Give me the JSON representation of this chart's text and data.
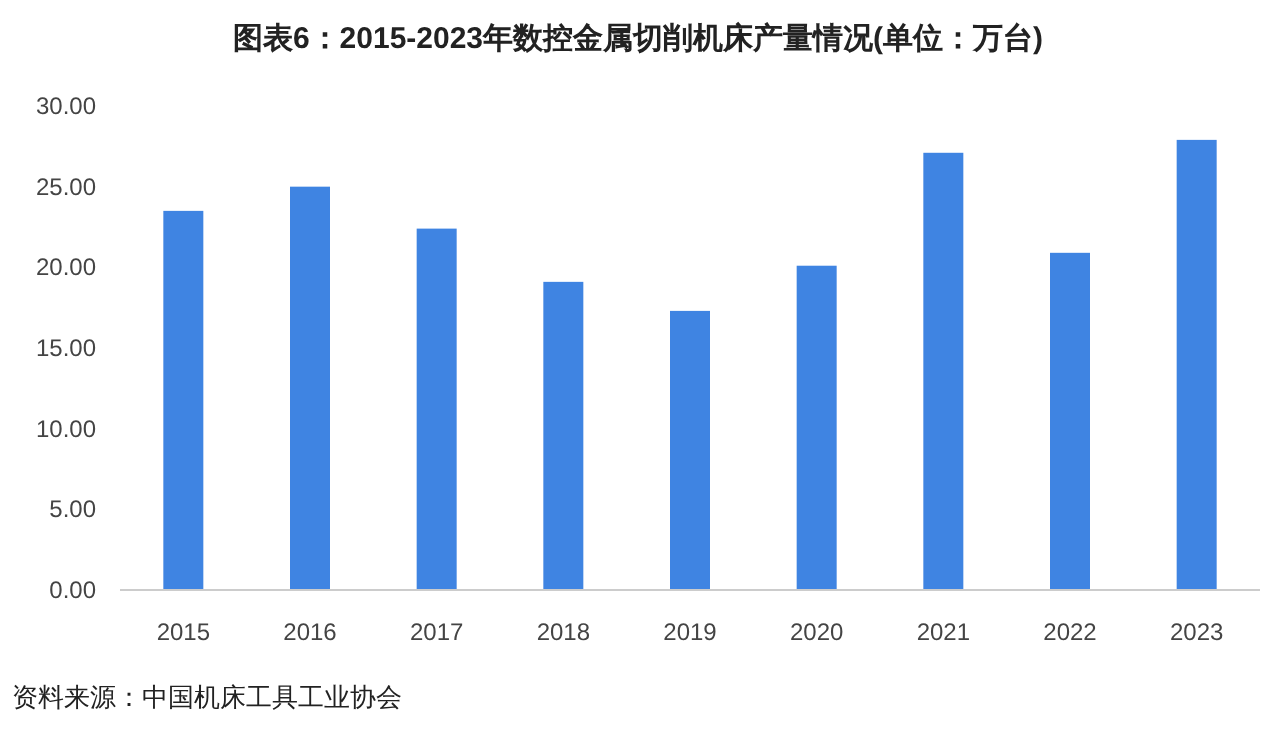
{
  "chart_data": {
    "type": "bar",
    "title": "图表6：2015-2023年数控金属切削机床产量情况(单位：万台)",
    "categories": [
      "2015",
      "2016",
      "2017",
      "2018",
      "2019",
      "2020",
      "2021",
      "2022",
      "2023"
    ],
    "series": [
      {
        "color": "#3f84e2",
        "values": [
          23.5,
          25.0,
          22.4,
          19.1,
          17.3,
          20.1,
          27.1,
          20.9,
          27.9
        ]
      }
    ],
    "ylim": [
      0,
      30
    ],
    "yticks": [
      {
        "value": 0,
        "label": "0.00"
      },
      {
        "value": 5,
        "label": "5.00"
      },
      {
        "value": 10,
        "label": "10.00"
      },
      {
        "value": 15,
        "label": "15.00"
      },
      {
        "value": 20,
        "label": "20.00"
      },
      {
        "value": 25,
        "label": "25.00"
      },
      {
        "value": 30,
        "label": "30.00"
      }
    ],
    "annotations": [
      "资料来源：中国机床工具工业协会"
    ]
  }
}
